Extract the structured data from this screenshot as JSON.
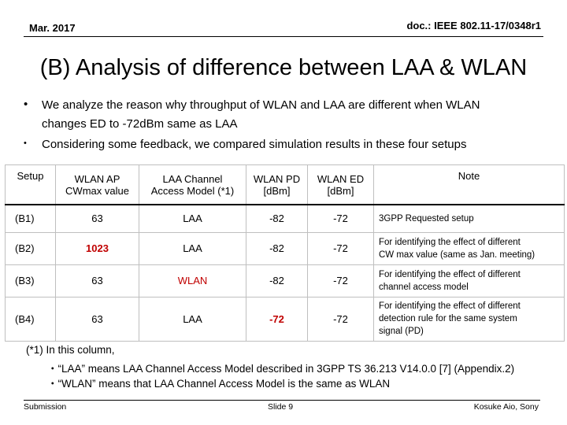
{
  "header": {
    "date": "Mar. 2017",
    "doc": "doc.: IEEE 802.11-17/0348r1"
  },
  "title": "(B) Analysis of difference between LAA & WLAN",
  "bullets": [
    {
      "line1": "We analyze the reason why throughput of WLAN and LAA are different when WLAN",
      "line2": "changes ED to -72dBm same as LAA"
    },
    {
      "line1": "Considering some feedback, we compared simulation results in these four setups"
    }
  ],
  "table": {
    "headers": [
      {
        "l1": "Setup",
        "l2": ""
      },
      {
        "l1": "WLAN AP",
        "l2": "CWmax value"
      },
      {
        "l1": "LAA Channel",
        "l2": "Access Model (*1)"
      },
      {
        "l1": "WLAN PD",
        "l2": "[dBm]"
      },
      {
        "l1": "WLAN ED",
        "l2": "[dBm]"
      },
      {
        "l1": "Note",
        "l2": ""
      }
    ],
    "rows": [
      {
        "setup": "(B1)",
        "cwmax": "63",
        "model": "LAA",
        "pd": "-82",
        "ed": "-72",
        "note": [
          "3GPP Requested setup"
        ]
      },
      {
        "setup": "(B2)",
        "cwmax": "1023",
        "model": "LAA",
        "pd": "-82",
        "ed": "-72",
        "note": [
          "For identifying the effect of different",
          "CW max value (same as Jan. meeting)"
        ]
      },
      {
        "setup": "(B3)",
        "cwmax": "63",
        "model": "WLAN",
        "pd": "-82",
        "ed": "-72",
        "note": [
          "For identifying the effect of different",
          "channel access model"
        ]
      },
      {
        "setup": "(B4)",
        "cwmax": "63",
        "model": "LAA",
        "pd": "-72",
        "ed": "-72",
        "note": [
          "For identifying the effect of different",
          "detection rule for the same system",
          "signal (PD)"
        ]
      }
    ]
  },
  "footnote": {
    "line1": "(*1) In this column,",
    "line2": "・“LAA” means  LAA Channel Access Model described in 3GPP TS 36.213 V14.0.0 [7] (Appendix.2)",
    "line3": "・“WLAN” means  that LAA Channel Access Model is the same as WLAN"
  },
  "footer": {
    "left": "Submission",
    "center": "Slide 9",
    "right": "Kosuke Aio, Sony"
  },
  "colors": {
    "highlight": "#c00000"
  }
}
